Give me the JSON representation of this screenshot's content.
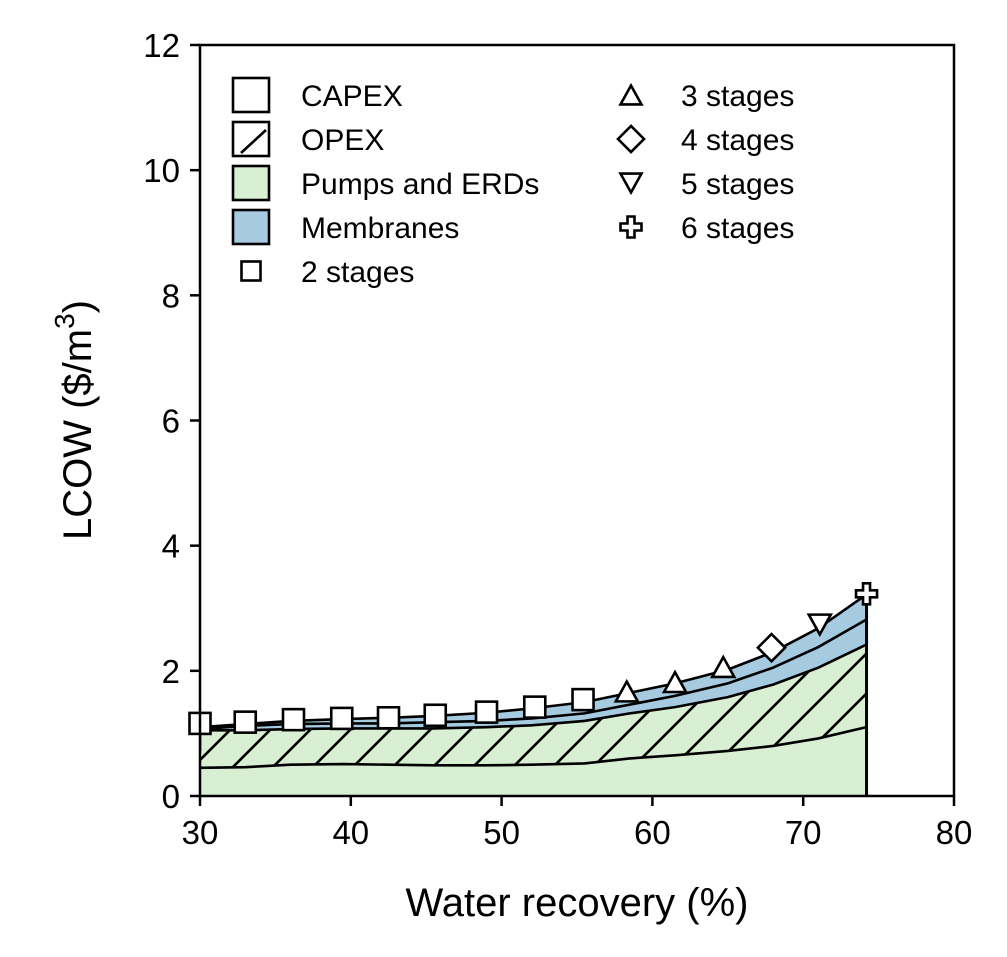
{
  "chart_data": {
    "type": "area",
    "xlabel": "Water recovery (%)",
    "ylabel_main": "LCOW ($/m",
    "ylabel_sup": "3",
    "ylabel_close": ")",
    "xlim": [
      30,
      80
    ],
    "ylim": [
      0,
      12
    ],
    "xticks": [
      30,
      40,
      50,
      60,
      70,
      80
    ],
    "yticks": [
      0,
      2,
      4,
      6,
      8,
      10,
      12
    ],
    "grid": false,
    "legend_placement": "top-left",
    "colors": {
      "pumps": "#d9efd3",
      "membranes": "#a6cbe1",
      "line": "#000000"
    },
    "x": [
      30,
      33,
      36,
      39.5,
      42.5,
      45.5,
      49,
      52,
      55.5,
      58.5,
      61.5,
      65,
      68,
      71,
      74.2
    ],
    "layers": {
      "capex_pumps_top": [
        0.45,
        0.46,
        0.5,
        0.51,
        0.5,
        0.49,
        0.49,
        0.5,
        0.52,
        0.6,
        0.65,
        0.72,
        0.8,
        0.92,
        1.1
      ],
      "opex_pumps_top": [
        1.05,
        1.05,
        1.07,
        1.08,
        1.08,
        1.08,
        1.1,
        1.13,
        1.2,
        1.32,
        1.42,
        1.58,
        1.78,
        2.05,
        2.42
      ],
      "opex_membranes_top": [
        1.07,
        1.12,
        1.15,
        1.16,
        1.16,
        1.18,
        1.2,
        1.24,
        1.32,
        1.46,
        1.6,
        1.8,
        2.05,
        2.38,
        2.82
      ],
      "total": [
        1.1,
        1.15,
        1.2,
        1.23,
        1.25,
        1.28,
        1.33,
        1.4,
        1.5,
        1.65,
        1.8,
        2.02,
        2.3,
        2.68,
        3.22
      ]
    },
    "opex_left_start": 0.72,
    "capex_pumps_end_top": 1.78,
    "series": [
      {
        "name": "2 stages",
        "marker": "square",
        "x": [
          30,
          33,
          36.2,
          39.4,
          42.5,
          45.6,
          49,
          52.2,
          55.4
        ],
        "y": [
          1.16,
          1.18,
          1.22,
          1.24,
          1.25,
          1.29,
          1.34,
          1.42,
          1.54
        ]
      },
      {
        "name": "3 stages",
        "marker": "triangle-up",
        "x": [
          58.3,
          61.5,
          64.7
        ],
        "y": [
          1.67,
          1.82,
          2.06
        ]
      },
      {
        "name": "4 stages",
        "marker": "diamond",
        "x": [
          67.9
        ],
        "y": [
          2.37
        ]
      },
      {
        "name": "5 stages",
        "marker": "triangle-down",
        "x": [
          71.1
        ],
        "y": [
          2.74
        ]
      },
      {
        "name": "6 stages",
        "marker": "plus",
        "x": [
          74.2
        ],
        "y": [
          3.23
        ]
      }
    ],
    "legend_left": [
      {
        "label": "CAPEX",
        "kind": "patch-plain"
      },
      {
        "label": "OPEX",
        "kind": "patch-hatch"
      },
      {
        "label": "Pumps and ERDs",
        "kind": "patch-pumps"
      },
      {
        "label": "Membranes",
        "kind": "patch-membranes"
      },
      {
        "label": "2 stages",
        "kind": "square"
      }
    ],
    "legend_right": [
      {
        "label": "3 stages",
        "kind": "triangle-up"
      },
      {
        "label": "4 stages",
        "kind": "diamond"
      },
      {
        "label": "5 stages",
        "kind": "triangle-down"
      },
      {
        "label": "6 stages",
        "kind": "plus"
      }
    ]
  }
}
